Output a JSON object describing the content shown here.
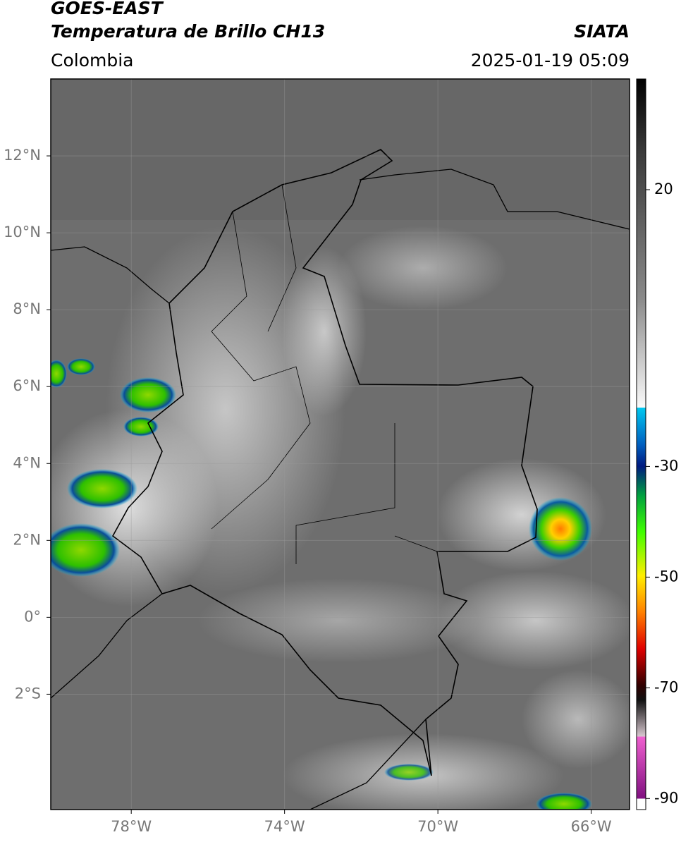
{
  "header": {
    "title_line1": "GOES-EAST",
    "title_line2": "Temperatura de Brillo CH13",
    "region": "Colombia",
    "source": "SIATA",
    "timestamp": "2025-01-19 05:09"
  },
  "chart_data": {
    "type": "map",
    "xlim": [
      -80.1,
      -65
    ],
    "ylim": [
      -5,
      14
    ],
    "xticks": [
      {
        "value": -78,
        "label": "78°W"
      },
      {
        "value": -74,
        "label": "74°W"
      },
      {
        "value": -70,
        "label": "70°W"
      },
      {
        "value": -66,
        "label": "66°W"
      }
    ],
    "yticks": [
      {
        "value": 12,
        "label": "12°N"
      },
      {
        "value": 10,
        "label": "10°N"
      },
      {
        "value": 8,
        "label": "8°N"
      },
      {
        "value": 6,
        "label": "6°N"
      },
      {
        "value": 4,
        "label": "4°N"
      },
      {
        "value": 2,
        "label": "2°N"
      },
      {
        "value": 0,
        "label": "0°"
      },
      {
        "value": -2,
        "label": "2°S"
      }
    ],
    "grid": true,
    "colorbar": {
      "lim": [
        -92,
        40
      ],
      "ticks": [
        20,
        -30,
        -50,
        -70,
        -90
      ]
    }
  }
}
